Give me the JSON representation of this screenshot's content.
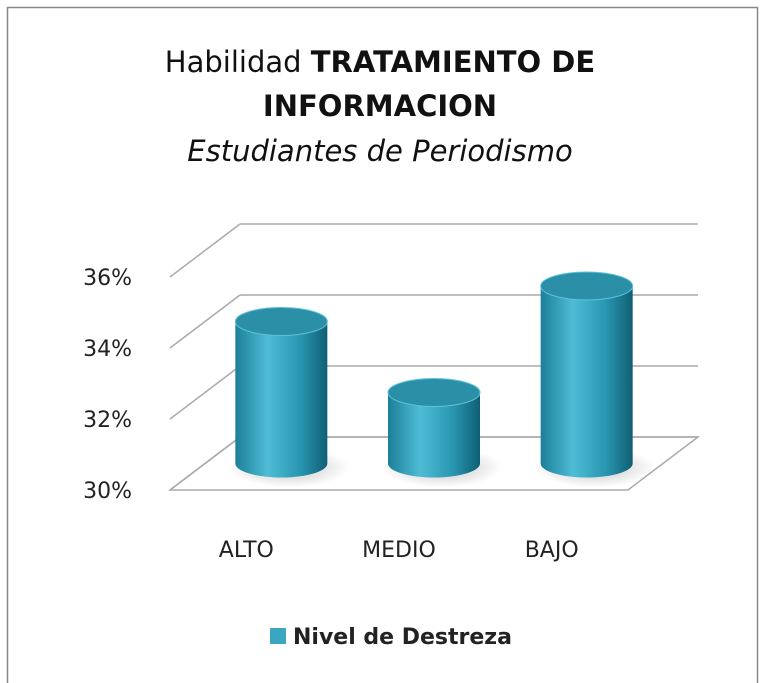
{
  "chart_data": {
    "type": "bar3d-cylinder",
    "title": {
      "normal": "Habilidad",
      "bold": "TRATAMIENTO DE INFORMACION"
    },
    "subtitle": "Estudiantes de Periodismo",
    "categories": [
      "ALTO",
      "MEDIO",
      "BAJO"
    ],
    "series": [
      {
        "name": "Nivel de Destreza",
        "color": "#3aa6c0",
        "values": [
          34,
          32,
          35
        ]
      }
    ],
    "ylim": [
      30,
      36
    ],
    "yticks": [
      {
        "value": 30,
        "label": "30%"
      },
      {
        "value": 32,
        "label": "32%"
      },
      {
        "value": 34,
        "label": "34%"
      },
      {
        "value": 36,
        "label": "36%"
      }
    ],
    "grid": true,
    "legend": "bottom"
  }
}
